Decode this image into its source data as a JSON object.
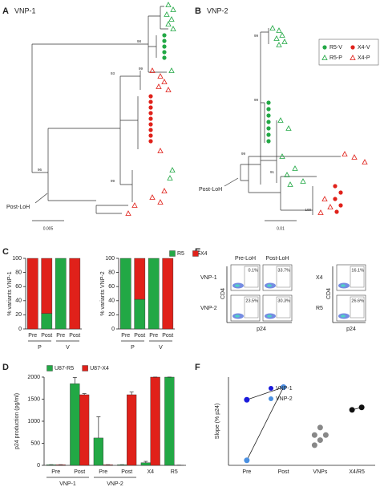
{
  "panel_labels": [
    "A",
    "B",
    "C",
    "D",
    "E",
    "F"
  ],
  "A": {
    "title": "VNP-1",
    "annotation": "Post-LoH",
    "scale": "0.005",
    "node_labels": [
      "98",
      "99",
      "93",
      "99",
      "96"
    ]
  },
  "B": {
    "title": "VNP-2",
    "annotation": "Post-LoH",
    "scale": "0.01",
    "node_labels": [
      "99",
      "99",
      "91",
      "100",
      "99"
    ],
    "legend": [
      {
        "name": "R5-V",
        "color": "#22a845",
        "marker": "circle"
      },
      {
        "name": "X4-V",
        "color": "#e0211a",
        "marker": "circle"
      },
      {
        "name": "R5-P",
        "color": "#22a845",
        "marker": "triangle"
      },
      {
        "name": "X4-P",
        "color": "#e0211a",
        "marker": "triangle"
      }
    ]
  },
  "E": {
    "columns": [
      "Pre-LoH",
      "Post-LoH"
    ],
    "rows": [
      "VNP-1",
      "VNP-2"
    ],
    "cells": [
      [
        "0.1%",
        "33.7%"
      ],
      [
        "23.5%",
        "30.3%"
      ]
    ],
    "tropism_rows": [
      "X4",
      "R5"
    ],
    "tropism_cells": [
      "16.1%",
      "26.6%"
    ],
    "y_label": "CD4",
    "x_label": "p24"
  },
  "chart_data": [
    {
      "type": "bar",
      "stacked": true,
      "legend": true,
      "y_label": "% variants VNP-1",
      "categories": [
        "Pre",
        "Post",
        "Pre",
        "Post"
      ],
      "groups": [
        "P",
        "V"
      ],
      "series": [
        {
          "name": "R5",
          "color": "#22a845",
          "values": [
            0,
            22,
            100,
            0
          ]
        },
        {
          "name": "X4",
          "color": "#e0211a",
          "values": [
            100,
            78,
            0,
            100
          ]
        }
      ],
      "ylim": [
        0,
        100
      ],
      "yticks": [
        0,
        20,
        40,
        60,
        80,
        100
      ]
    },
    {
      "type": "bar",
      "stacked": true,
      "y_label": "% variants VNP-2",
      "categories": [
        "Pre",
        "Post",
        "Pre",
        "Post"
      ],
      "groups": [
        "P",
        "V"
      ],
      "series": [
        {
          "color": "#22a845",
          "values": [
            100,
            42,
            100,
            0
          ]
        },
        {
          "color": "#e0211a",
          "values": [
            0,
            58,
            0,
            100
          ]
        }
      ],
      "ylim": [
        0,
        100
      ],
      "yticks": [
        0,
        20,
        40,
        60,
        80,
        100
      ]
    },
    {
      "type": "bar",
      "legend": true,
      "y_label": "p24 production (pg/ml)",
      "categories": [
        "Pre",
        "Post",
        "Pre",
        "Post",
        "X4",
        "R5"
      ],
      "groups": [
        "VNP-1",
        "VNP-2"
      ],
      "series": [
        {
          "name": "U87-R5",
          "color": "#22a845",
          "values": [
            15,
            1850,
            620,
            15,
            60,
            2000
          ],
          "errors": [
            0,
            140,
            480,
            0,
            30,
            0
          ]
        },
        {
          "name": "U87-X4",
          "color": "#e0211a",
          "values": [
            15,
            1600,
            15,
            1600,
            2000,
            5
          ],
          "errors": [
            0,
            25,
            0,
            60,
            0,
            0
          ]
        }
      ],
      "ylim": [
        0,
        2000
      ],
      "yticks": [
        0,
        500,
        1000,
        1500,
        2000
      ]
    },
    {
      "type": "scatter",
      "legend": true,
      "y_label": "Slope (% p24)",
      "categories": [
        "Pre",
        "Post",
        "VNPs",
        "X4/R5"
      ],
      "series": [
        {
          "name": "VNP-1",
          "color": "#1a1adb",
          "line": true,
          "x": [
            "Pre",
            "Post"
          ],
          "values": [
            0.26,
            0.31
          ]
        },
        {
          "name": "VNP-2",
          "color": "#4a90e2",
          "line": true,
          "x": [
            "Pre",
            "Post"
          ],
          "values": [
            0.02,
            0.31
          ]
        },
        {
          "color": "#888888",
          "x": [
            "VNPs",
            "VNPs",
            "VNPs",
            "VNPs",
            "VNPs"
          ],
          "values": [
            0.15,
            0.12,
            0.12,
            0.1,
            0.08
          ]
        },
        {
          "color": "#111111",
          "line": true,
          "x": [
            "X4/R5",
            "X4/R5"
          ],
          "values": [
            0.22,
            0.23
          ]
        }
      ],
      "ylim": [
        0,
        0.35
      ]
    }
  ]
}
